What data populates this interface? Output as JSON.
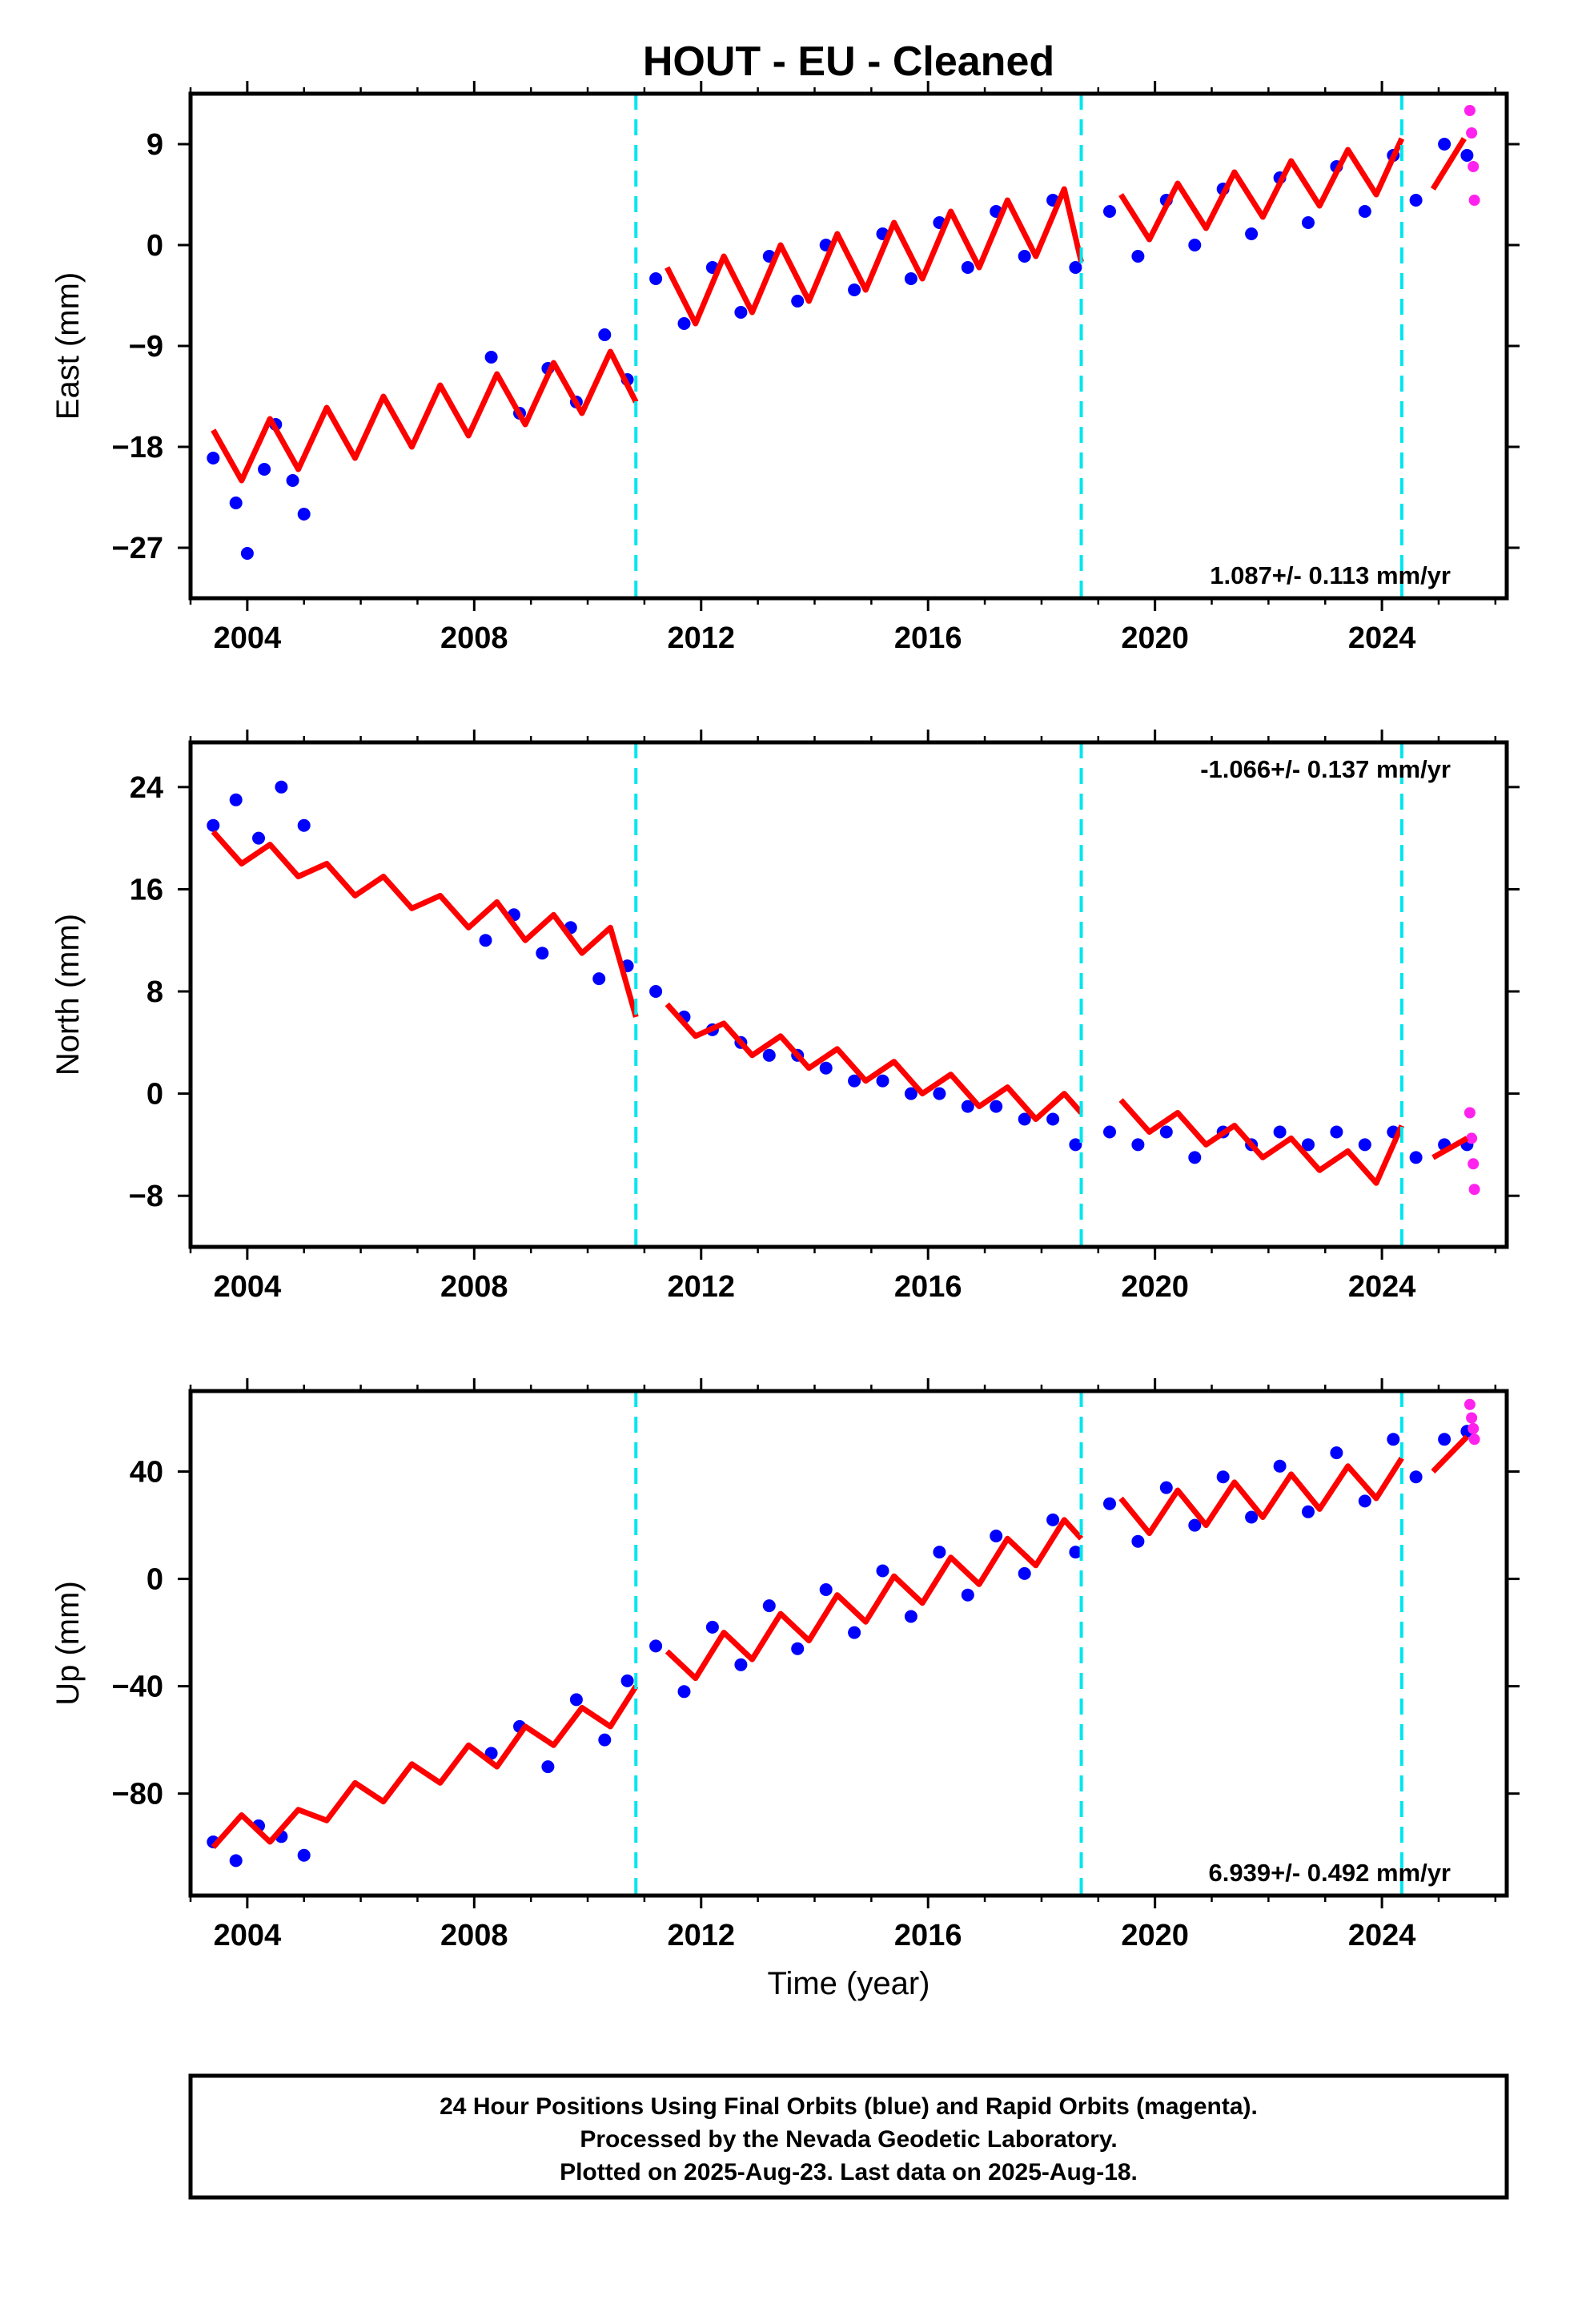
{
  "title": "HOUT  - EU - Cleaned",
  "xlabel": "Time (year)",
  "footer": {
    "line1": "24 Hour Positions Using Final Orbits (blue) and Rapid Orbits (magenta).",
    "line2": "Processed by the Nevada Geodetic Laboratory.",
    "line3": "Plotted on 2025-Aug-23. Last data on 2025-Aug-18."
  },
  "colors": {
    "final_orbits": "#0000ff",
    "rapid_orbits": "#ff22ee",
    "model": "#ff0000",
    "equipment_change": "#00e5ee"
  },
  "chart_data": [
    {
      "type": "scatter",
      "ylabel": "East (mm)",
      "xlim": [
        2003,
        2026.2
      ],
      "ylim": [
        -31.5,
        13.5
      ],
      "x_ticks": [
        2004,
        2008,
        2012,
        2016,
        2020,
        2024
      ],
      "y_ticks": [
        -27,
        -18,
        -9,
        0,
        9
      ],
      "y_tick_labels": [
        "−27",
        "−18",
        "−9",
        "0",
        "9"
      ],
      "rate_text": "1.087+/- 0.113 mm/yr",
      "rate_position": "bottom-right",
      "breaks": [
        2010.85,
        2018.7,
        2024.35
      ],
      "model": {
        "x": [
          2003.4,
          2003.9,
          2004.4,
          2004.9,
          2005.4,
          2005.9,
          2006.4,
          2006.9,
          2007.4,
          2007.9,
          2008.4,
          2008.9,
          2009.4,
          2009.9,
          2010.4,
          2010.85,
          2011.4,
          2011.9,
          2012.4,
          2012.9,
          2013.4,
          2013.9,
          2014.4,
          2014.9,
          2015.4,
          2015.9,
          2016.4,
          2016.9,
          2017.4,
          2017.9,
          2018.4,
          2018.7,
          2019.4,
          2019.9,
          2020.4,
          2020.9,
          2021.4,
          2021.9,
          2022.4,
          2022.9,
          2023.4,
          2023.9,
          2024.35,
          2024.9,
          2025.45
        ],
        "y": [
          -16.5,
          -21,
          -15.5,
          -20,
          -14.5,
          -19,
          -13.5,
          -18,
          -12.5,
          -17,
          -11.5,
          -16,
          -10.5,
          -15,
          -9.5,
          -14,
          -2,
          -7,
          -1,
          -6,
          0,
          -5,
          1,
          -4,
          2,
          -3,
          3,
          -2,
          4,
          -1,
          5,
          -1.5,
          4.5,
          0.5,
          5.5,
          1.5,
          6.5,
          2.5,
          7.5,
          3.5,
          8.5,
          4.5,
          9.5,
          5,
          9.5
        ]
      },
      "final_orbits": {
        "x": [
          2003.4,
          2003.8,
          2004.0,
          2004.3,
          2004.5,
          2004.8,
          2005.0,
          2008.3,
          2008.8,
          2009.3,
          2009.8,
          2010.3,
          2010.7,
          2011.2,
          2011.7,
          2012.2,
          2012.7,
          2013.2,
          2013.7,
          2014.2,
          2014.7,
          2015.2,
          2015.7,
          2016.2,
          2016.7,
          2017.2,
          2017.7,
          2018.2,
          2018.6,
          2019.2,
          2019.7,
          2020.2,
          2020.7,
          2021.2,
          2021.7,
          2022.2,
          2022.7,
          2023.2,
          2023.7,
          2024.2,
          2024.6,
          2025.1,
          2025.5
        ],
        "y": [
          -19,
          -23,
          -27.5,
          -20,
          -16,
          -21,
          -24,
          -10,
          -15,
          -11,
          -14,
          -8,
          -12,
          -3,
          -7,
          -2,
          -6,
          -1,
          -5,
          0,
          -4,
          1,
          -3,
          2,
          -2,
          3,
          -1,
          4,
          -2,
          3,
          -1,
          4,
          0,
          5,
          1,
          6,
          2,
          7,
          3,
          8,
          4,
          9,
          8
        ]
      },
      "rapid_orbits": {
        "x": [
          2025.55,
          2025.58,
          2025.61,
          2025.63
        ],
        "y": [
          12,
          10,
          7,
          4
        ]
      }
    },
    {
      "type": "scatter",
      "ylabel": "North (mm)",
      "xlim": [
        2003,
        2026.2
      ],
      "ylim": [
        -12,
        27.5
      ],
      "x_ticks": [
        2004,
        2008,
        2012,
        2016,
        2020,
        2024
      ],
      "y_ticks": [
        -8,
        0,
        8,
        16,
        24
      ],
      "y_tick_labels": [
        "−8",
        "0",
        "8",
        "16",
        "24"
      ],
      "rate_text": "-1.066+/- 0.137 mm/yr",
      "rate_position": "top-right",
      "breaks": [
        2010.85,
        2018.7,
        2024.35
      ],
      "model": {
        "x": [
          2003.4,
          2003.9,
          2004.4,
          2004.9,
          2005.4,
          2005.9,
          2006.4,
          2006.9,
          2007.4,
          2007.9,
          2008.4,
          2008.9,
          2009.4,
          2009.9,
          2010.4,
          2010.85,
          2011.4,
          2011.9,
          2012.4,
          2012.9,
          2013.4,
          2013.9,
          2014.4,
          2014.9,
          2015.4,
          2015.9,
          2016.4,
          2016.9,
          2017.4,
          2017.9,
          2018.4,
          2018.7,
          2019.4,
          2019.9,
          2020.4,
          2020.9,
          2021.4,
          2021.9,
          2022.4,
          2022.9,
          2023.4,
          2023.9,
          2024.35,
          2024.9,
          2025.5
        ],
        "y": [
          20.5,
          18,
          19.5,
          17,
          18,
          15.5,
          17,
          14.5,
          15.5,
          13,
          15,
          12,
          14,
          11,
          13,
          6,
          7,
          4.5,
          5.5,
          3,
          4.5,
          2,
          3.5,
          1,
          2.5,
          0,
          1.5,
          -1,
          0.5,
          -2,
          0,
          -1.5,
          -0.5,
          -3,
          -1.5,
          -4,
          -2.5,
          -5,
          -3.5,
          -6,
          -4.5,
          -7,
          -2.5,
          -5,
          -3.5
        ]
      },
      "final_orbits": {
        "x": [
          2003.4,
          2003.8,
          2004.2,
          2004.6,
          2005.0,
          2008.2,
          2008.7,
          2009.2,
          2009.7,
          2010.2,
          2010.7,
          2011.2,
          2011.7,
          2012.2,
          2012.7,
          2013.2,
          2013.7,
          2014.2,
          2014.7,
          2015.2,
          2015.7,
          2016.2,
          2016.7,
          2017.2,
          2017.7,
          2018.2,
          2018.6,
          2019.2,
          2019.7,
          2020.2,
          2020.7,
          2021.2,
          2021.7,
          2022.2,
          2022.7,
          2023.2,
          2023.7,
          2024.2,
          2024.6,
          2025.1,
          2025.5
        ],
        "y": [
          21,
          23,
          20,
          24,
          21,
          12,
          14,
          11,
          13,
          9,
          10,
          8,
          6,
          5,
          4,
          3,
          3,
          2,
          1,
          1,
          0,
          0,
          -1,
          -1,
          -2,
          -2,
          -4,
          -3,
          -4,
          -3,
          -5,
          -3,
          -4,
          -3,
          -4,
          -3,
          -4,
          -3,
          -5,
          -4,
          -4
        ]
      },
      "rapid_orbits": {
        "x": [
          2025.55,
          2025.58,
          2025.61,
          2025.63
        ],
        "y": [
          -1.5,
          -3.5,
          -5.5,
          -7.5
        ]
      }
    },
    {
      "type": "scatter",
      "ylabel": "Up (mm)",
      "xlim": [
        2003,
        2026.2
      ],
      "ylim": [
        -118,
        70
      ],
      "x_ticks": [
        2004,
        2008,
        2012,
        2016,
        2020,
        2024
      ],
      "y_ticks": [
        -80,
        -40,
        0,
        40
      ],
      "y_tick_labels": [
        "−80",
        "−40",
        "0",
        "40"
      ],
      "rate_text": "6.939+/- 0.492 mm/yr",
      "rate_position": "bottom-right",
      "breaks": [
        2010.85,
        2018.7,
        2024.35
      ],
      "model": {
        "x": [
          2003.4,
          2003.9,
          2004.4,
          2004.9,
          2005.4,
          2005.9,
          2006.4,
          2006.9,
          2007.4,
          2007.9,
          2008.4,
          2008.9,
          2009.4,
          2009.9,
          2010.4,
          2010.85,
          2011.4,
          2011.9,
          2012.4,
          2012.9,
          2013.4,
          2013.9,
          2014.4,
          2014.9,
          2015.4,
          2015.9,
          2016.4,
          2016.9,
          2017.4,
          2017.9,
          2018.4,
          2018.7,
          2019.4,
          2019.9,
          2020.4,
          2020.9,
          2021.4,
          2021.9,
          2022.4,
          2022.9,
          2023.4,
          2023.9,
          2024.35,
          2024.9,
          2025.5
        ],
        "y": [
          -100,
          -88,
          -98,
          -86,
          -90,
          -76,
          -83,
          -69,
          -76,
          -62,
          -70,
          -55,
          -62,
          -48,
          -55,
          -40,
          -27,
          -37,
          -20,
          -30,
          -13,
          -23,
          -6,
          -16,
          1,
          -9,
          8,
          -2,
          15,
          5,
          22,
          15,
          30,
          17,
          33,
          20,
          36,
          23,
          39,
          26,
          42,
          30,
          45,
          40,
          53
        ]
      },
      "final_orbits": {
        "x": [
          2003.4,
          2003.8,
          2004.2,
          2004.6,
          2005.0,
          2008.3,
          2008.8,
          2009.3,
          2009.8,
          2010.3,
          2010.7,
          2011.2,
          2011.7,
          2012.2,
          2012.7,
          2013.2,
          2013.7,
          2014.2,
          2014.7,
          2015.2,
          2015.7,
          2016.2,
          2016.7,
          2017.2,
          2017.7,
          2018.2,
          2018.6,
          2019.2,
          2019.7,
          2020.2,
          2020.7,
          2021.2,
          2021.7,
          2022.2,
          2022.7,
          2023.2,
          2023.7,
          2024.2,
          2024.6,
          2025.1,
          2025.5
        ],
        "y": [
          -98,
          -105,
          -92,
          -96,
          -103,
          -65,
          -55,
          -70,
          -45,
          -60,
          -38,
          -25,
          -42,
          -18,
          -32,
          -10,
          -26,
          -4,
          -20,
          3,
          -14,
          10,
          -6,
          16,
          2,
          22,
          10,
          28,
          14,
          34,
          20,
          38,
          23,
          42,
          25,
          47,
          29,
          52,
          38,
          52,
          55
        ]
      },
      "rapid_orbits": {
        "x": [
          2025.55,
          2025.58,
          2025.61,
          2025.63
        ],
        "y": [
          65,
          60,
          56,
          52
        ]
      }
    }
  ]
}
